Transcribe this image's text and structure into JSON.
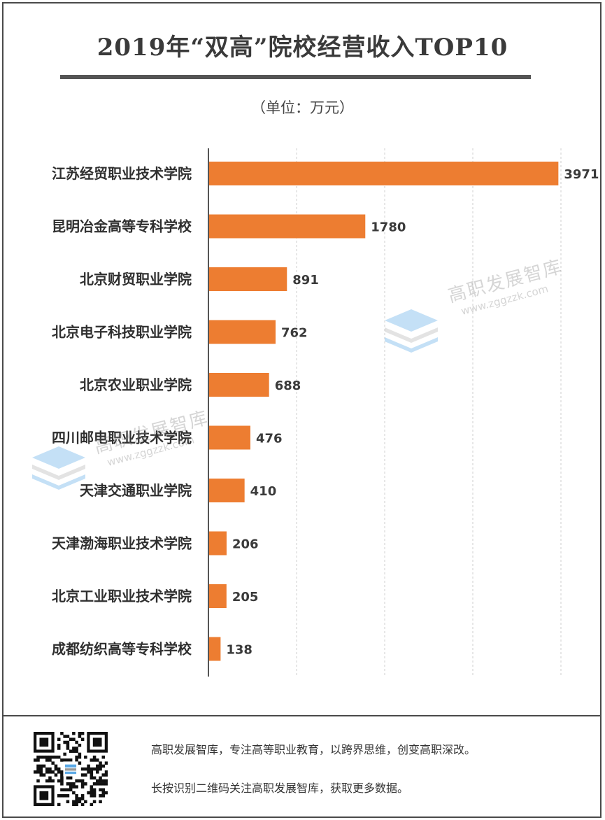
{
  "title": "2019年“双高”院校经营收入TOP10",
  "unit_label": "（单位：万元）",
  "chart_data": {
    "type": "bar",
    "orientation": "horizontal",
    "categories": [
      "江苏经贸职业技术学院",
      "昆明冶金高等专科学校",
      "北京财贸职业学院",
      "北京电子科技职业学院",
      "北京农业职业学院",
      "四川邮电职业技术学院",
      "天津交通职业学院",
      "天津渤海职业技术学院",
      "北京工业职业技术学院",
      "成都纺织高等专科学校"
    ],
    "values": [
      3971,
      1780,
      891,
      762,
      688,
      476,
      410,
      206,
      205,
      138
    ],
    "xlim": [
      0,
      4000
    ],
    "grid": "vertical-dashed",
    "bar_color": "#ED7D31",
    "data_labels": true
  },
  "watermark": {
    "name": "高职发展智库",
    "url": "www.zggzzk.com"
  },
  "footer": {
    "line1": "高职发展智库，专注高等职业教育，以跨界思维，创变高职深改。",
    "line2": "长按识别二维码关注高职发展智库，获取更多数据。"
  }
}
